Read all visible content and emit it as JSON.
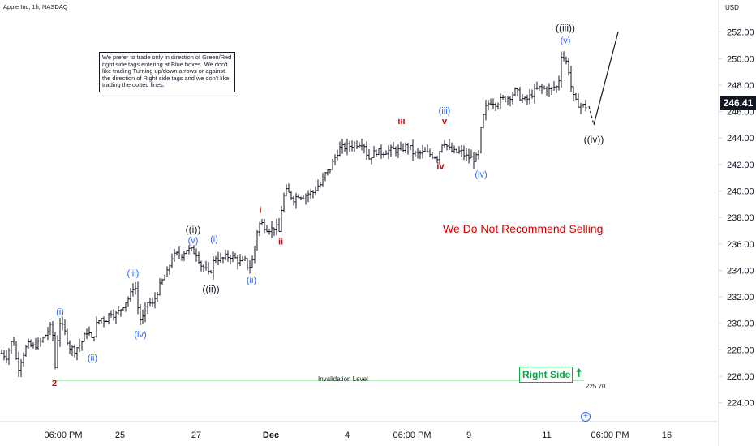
{
  "header": {
    "symbol": "Apple Inc, 1h, NASDAQ",
    "currency": "USD"
  },
  "current_price": "246.41",
  "note": "We prefer to trade only in direction of Green/Red right side tags entering at Blue boxes. We don't like trading Turning up/down arrows or against the direction of Right side tags and we don't like trading the dotted lines.",
  "headline": "We Do Not Recommend Selling",
  "right_side_tag": {
    "label": "Right Side",
    "color": "#00a63e",
    "icon": "arrow-up-icon"
  },
  "invalidation": {
    "label": "Invalidation Level",
    "value": "225.70",
    "price": 225.7,
    "color": "#4caf50"
  },
  "colors": {
    "candles": "#131722",
    "blue_labels": "#2962ff",
    "red_labels": "#d50000",
    "black_labels": "#131722"
  },
  "chart_data": {
    "type": "ohlc",
    "ylim": [
      223,
      254
    ],
    "y_ticks": [
      "224.00",
      "226.00",
      "228.00",
      "230.00",
      "232.00",
      "234.00",
      "236.00",
      "238.00",
      "240.00",
      "242.00",
      "244.00",
      "246.00",
      "248.00",
      "250.00",
      "252.00"
    ],
    "x_ticks": [
      "06:00 PM",
      "25",
      "27",
      "Dec",
      "4",
      "06:00 PM",
      "9",
      "11",
      "06:00 PM",
      "16"
    ],
    "path": [
      [
        0,
        227.8
      ],
      [
        8,
        227.5
      ],
      [
        16,
        228.9
      ],
      [
        22,
        226.5
      ],
      [
        28,
        227.6
      ],
      [
        34,
        228.4
      ],
      [
        40,
        228.2
      ],
      [
        50,
        228.6
      ],
      [
        58,
        229.3
      ],
      [
        64,
        229.9
      ],
      [
        68,
        226.7
      ],
      [
        70,
        228.4
      ],
      [
        74,
        230.1
      ],
      [
        80,
        229.3
      ],
      [
        86,
        228.2
      ],
      [
        92,
        228.0
      ],
      [
        100,
        228.5
      ],
      [
        108,
        229.5
      ],
      [
        114,
        228.6
      ],
      [
        118,
        229.8
      ],
      [
        124,
        230.4
      ],
      [
        130,
        230.2
      ],
      [
        136,
        230.9
      ],
      [
        142,
        230.6
      ],
      [
        148,
        231.0
      ],
      [
        154,
        231.6
      ],
      [
        160,
        232.0
      ],
      [
        166,
        233.1
      ],
      [
        170,
        231.2
      ],
      [
        174,
        230.0
      ],
      [
        178,
        230.8
      ],
      [
        182,
        231.6
      ],
      [
        188,
        231.4
      ],
      [
        194,
        232.4
      ],
      [
        200,
        233.2
      ],
      [
        206,
        233.8
      ],
      [
        212,
        235.0
      ],
      [
        218,
        235.2
      ],
      [
        224,
        235.2
      ],
      [
        230,
        235.6
      ],
      [
        236,
        235.5
      ],
      [
        242,
        235.3
      ],
      [
        248,
        234.4
      ],
      [
        254,
        234.0
      ],
      [
        258,
        233.6
      ],
      [
        262,
        234.5
      ],
      [
        266,
        235.0
      ],
      [
        272,
        234.8
      ],
      [
        278,
        235.0
      ],
      [
        284,
        235.1
      ],
      [
        290,
        234.9
      ],
      [
        296,
        234.6
      ],
      [
        302,
        234.7
      ],
      [
        306,
        234.2
      ],
      [
        310,
        234.4
      ],
      [
        314,
        235.8
      ],
      [
        318,
        237.4
      ],
      [
        322,
        237.6
      ],
      [
        328,
        237.2
      ],
      [
        334,
        237.1
      ],
      [
        340,
        237.3
      ],
      [
        344,
        236.9
      ],
      [
        348,
        239.2
      ],
      [
        352,
        240.0
      ],
      [
        356,
        239.8
      ],
      [
        362,
        239.4
      ],
      [
        368,
        239.7
      ],
      [
        374,
        239.6
      ],
      [
        380,
        239.8
      ],
      [
        386,
        239.9
      ],
      [
        392,
        240.4
      ],
      [
        396,
        240.5
      ],
      [
        400,
        241.2
      ],
      [
        406,
        241.6
      ],
      [
        412,
        242.4
      ],
      [
        418,
        243.2
      ],
      [
        424,
        243.3
      ],
      [
        430,
        243.4
      ],
      [
        436,
        243.5
      ],
      [
        442,
        243.6
      ],
      [
        448,
        243.7
      ],
      [
        454,
        242.4
      ],
      [
        458,
        242.7
      ],
      [
        464,
        243.0
      ],
      [
        470,
        242.9
      ],
      [
        476,
        243.0
      ],
      [
        482,
        243.1
      ],
      [
        488,
        243.1
      ],
      [
        494,
        243.0
      ],
      [
        498,
        243.3
      ],
      [
        504,
        243.4
      ],
      [
        510,
        242.8
      ],
      [
        516,
        242.8
      ],
      [
        522,
        242.9
      ],
      [
        528,
        242.8
      ],
      [
        534,
        242.7
      ],
      [
        540,
        242.5
      ],
      [
        544,
        243.6
      ],
      [
        548,
        243.7
      ],
      [
        552,
        243.3
      ],
      [
        556,
        243.0
      ],
      [
        562,
        242.9
      ],
      [
        568,
        243.0
      ],
      [
        574,
        242.6
      ],
      [
        580,
        242.5
      ],
      [
        586,
        242.4
      ],
      [
        590,
        242.8
      ],
      [
        594,
        245.2
      ],
      [
        600,
        246.5
      ],
      [
        606,
        246.8
      ],
      [
        612,
        246.6
      ],
      [
        618,
        246.9
      ],
      [
        624,
        247.0
      ],
      [
        630,
        247.2
      ],
      [
        636,
        247.6
      ],
      [
        642,
        247.0
      ],
      [
        648,
        246.8
      ],
      [
        654,
        247.2
      ],
      [
        660,
        247.6
      ],
      [
        666,
        247.8
      ],
      [
        672,
        247.7
      ],
      [
        678,
        247.6
      ],
      [
        684,
        247.9
      ],
      [
        688,
        247.8
      ],
      [
        692,
        250.3
      ],
      [
        696,
        250.0
      ],
      [
        700,
        249.5
      ],
      [
        704,
        247.9
      ],
      [
        708,
        246.8
      ],
      [
        712,
        246.6
      ],
      [
        716,
        246.5
      ],
      [
        720,
        246.4
      ],
      [
        724,
        246.4
      ]
    ],
    "projection": [
      [
        726,
        246.4
      ],
      [
        732,
        245.0
      ],
      [
        762,
        252.0
      ]
    ],
    "wave_labels": [
      {
        "t": "2",
        "x": 67,
        "p": 225.5,
        "c": "red"
      },
      {
        "t": "(i)",
        "x": 74,
        "p": 230.9,
        "c": "blue"
      },
      {
        "t": "(ii)",
        "x": 114,
        "p": 227.4,
        "c": "blue"
      },
      {
        "t": "(iii)",
        "x": 164,
        "p": 233.8,
        "c": "blue"
      },
      {
        "t": "(iv)",
        "x": 173,
        "p": 229.2,
        "c": "blue"
      },
      {
        "t": "(v)",
        "x": 238,
        "p": 236.3,
        "c": "blue"
      },
      {
        "t": "((i))",
        "x": 238,
        "p": 237.1,
        "c": "black"
      },
      {
        "t": "((ii))",
        "x": 260,
        "p": 232.6,
        "c": "black"
      },
      {
        "t": "(i)",
        "x": 264,
        "p": 236.4,
        "c": "blue"
      },
      {
        "t": "(ii)",
        "x": 310,
        "p": 233.3,
        "c": "blue"
      },
      {
        "t": "i",
        "x": 321,
        "p": 238.6,
        "c": "red"
      },
      {
        "t": "ii",
        "x": 346,
        "p": 236.2,
        "c": "red"
      },
      {
        "t": "iii",
        "x": 495,
        "p": 245.3,
        "c": "red"
      },
      {
        "t": "(iii)",
        "x": 548,
        "p": 246.1,
        "c": "blue"
      },
      {
        "t": "v",
        "x": 548,
        "p": 245.3,
        "c": "red"
      },
      {
        "t": "iv",
        "x": 543,
        "p": 241.9,
        "c": "red"
      },
      {
        "t": "(iv)",
        "x": 593,
        "p": 241.3,
        "c": "blue"
      },
      {
        "t": "(v)",
        "x": 697,
        "p": 251.4,
        "c": "blue"
      },
      {
        "t": "((iii))",
        "x": 697,
        "p": 252.3,
        "c": "black"
      },
      {
        "t": "((iv))",
        "x": 732,
        "p": 243.9,
        "c": "black"
      }
    ]
  }
}
